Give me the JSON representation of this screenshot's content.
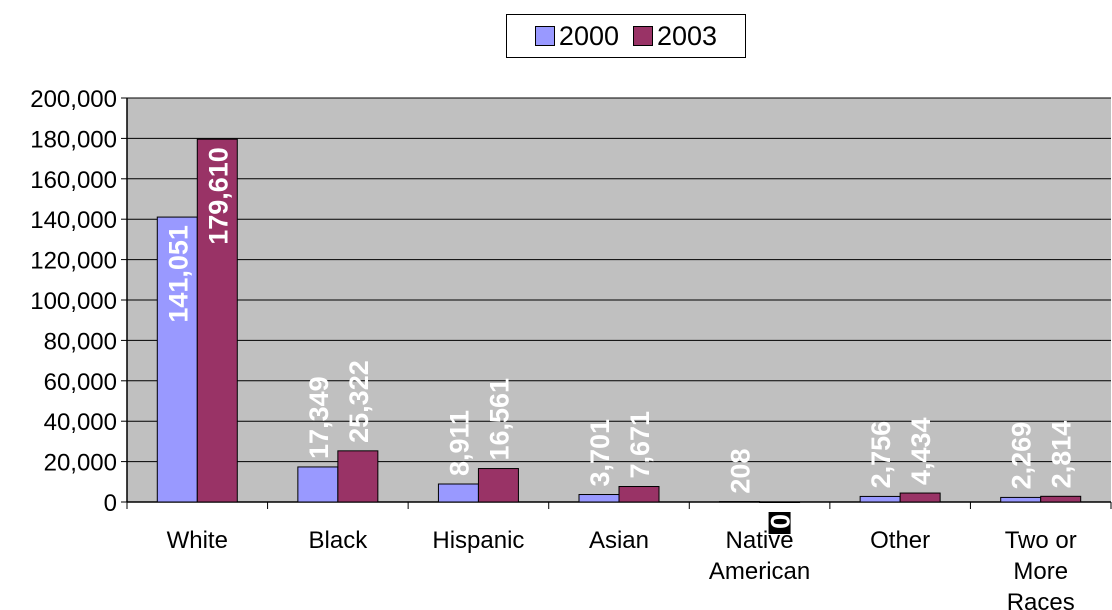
{
  "chart_data": {
    "type": "bar",
    "categories": [
      [
        "White"
      ],
      [
        "Black"
      ],
      [
        "Hispanic"
      ],
      [
        "Asian"
      ],
      [
        "Native",
        "American"
      ],
      [
        "Other"
      ],
      [
        "Two or",
        "More",
        "Races"
      ]
    ],
    "series": [
      {
        "name": "2000",
        "color": "#9999ff",
        "values": [
          141051,
          17349,
          8911,
          3701,
          208,
          2756,
          2269
        ],
        "labels": [
          "141,051",
          "17,349",
          "8,911",
          "3,701",
          "208",
          "2,756",
          "2,269"
        ]
      },
      {
        "name": "2003",
        "color": "#993366",
        "values": [
          179610,
          25322,
          16561,
          7671,
          0,
          4434,
          2814
        ],
        "labels": [
          "179,610",
          "25,322",
          "16,561",
          "7,671",
          "0",
          "4,434",
          "2,814"
        ]
      }
    ],
    "ylim": [
      0,
      200000
    ],
    "yticks": [
      "0",
      "20,000",
      "40,000",
      "60,000",
      "80,000",
      "100,000",
      "120,000",
      "140,000",
      "160,000",
      "180,000",
      "200,000"
    ],
    "plot_background": "#c0c0c0",
    "grid": true,
    "legend": "top"
  }
}
